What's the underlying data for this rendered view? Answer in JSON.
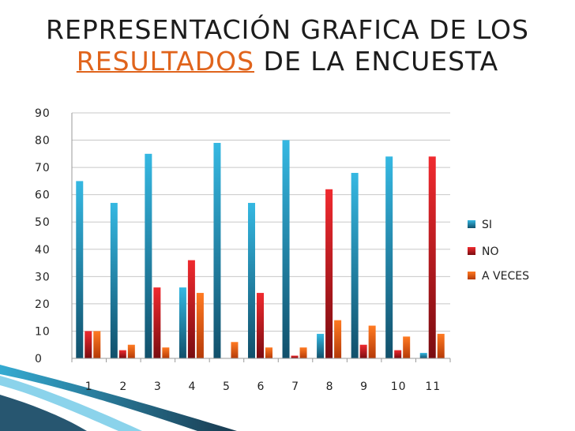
{
  "header": {
    "title_line1": "REPRESENTACIÓN GRAFICA DE LOS",
    "title_highlight": "RESULTADOS",
    "title_rest": "DE LA ENCUESTA"
  },
  "colors": {
    "si": "#1f9bc7",
    "no": "#d9202a",
    "a_veces": "#f0661a",
    "title_highlight": "#e0641c",
    "grid": "#c8c8c8",
    "swoosh": "#1a4f6e"
  },
  "chart_data": {
    "type": "bar",
    "title": "",
    "xlabel": "",
    "ylabel": "",
    "categories": [
      "1",
      "2",
      "3",
      "4",
      "5",
      "6",
      "7",
      "8",
      "9",
      "10",
      "11"
    ],
    "series": [
      {
        "name": "SI",
        "values": [
          65,
          57,
          75,
          26,
          79,
          57,
          80,
          9,
          68,
          74,
          2
        ]
      },
      {
        "name": "NO",
        "values": [
          10,
          3,
          26,
          36,
          0,
          24,
          1,
          62,
          5,
          3,
          74
        ]
      },
      {
        "name": "A VECES",
        "values": [
          10,
          5,
          4,
          24,
          6,
          4,
          4,
          14,
          12,
          8,
          9
        ]
      }
    ],
    "ylim": [
      0,
      90
    ],
    "yticks": [
      0,
      10,
      20,
      30,
      40,
      50,
      60,
      70,
      80,
      90
    ],
    "grid": true,
    "legend": "right"
  }
}
